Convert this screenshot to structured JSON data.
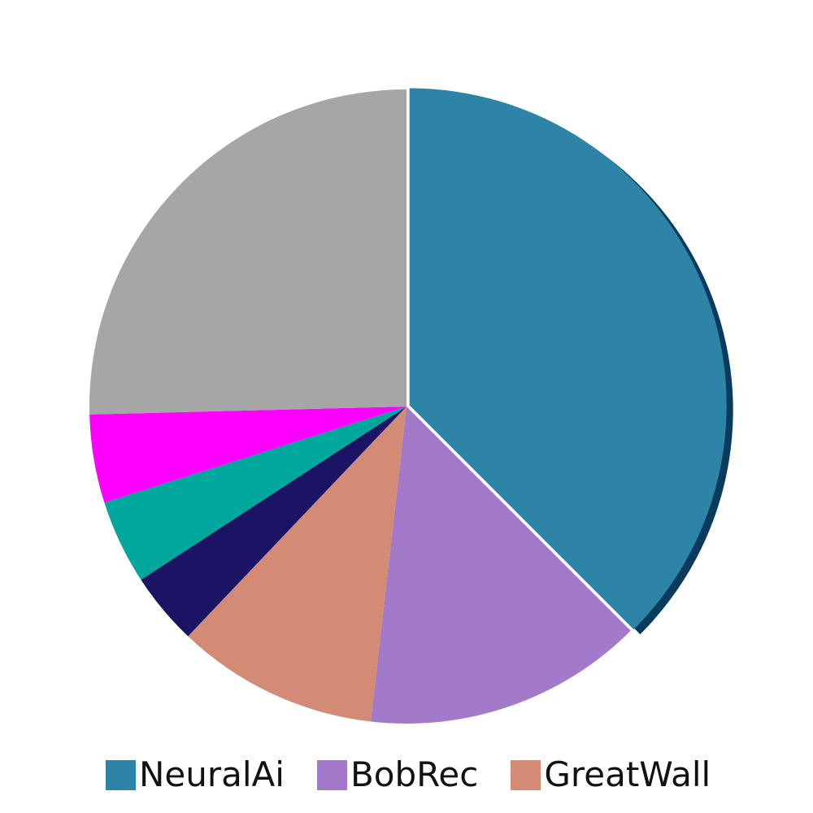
{
  "chart_data": {
    "type": "pie",
    "title": "",
    "start": "12 o'clock",
    "direction": "clockwise",
    "exploded_slice": "NeuralAi",
    "slices": [
      {
        "label": "NeuralAi",
        "value": 37.5,
        "color": "#2e84a6"
      },
      {
        "label": "BobRec",
        "value": 14.3,
        "color": "#a379c9"
      },
      {
        "label": "GreatWall",
        "value": 10.3,
        "color": "#d38b76"
      },
      {
        "label": "",
        "value": 3.7,
        "color": "#1b1464"
      },
      {
        "label": "",
        "value": 4.3,
        "color": "#00a79d"
      },
      {
        "label": "",
        "value": 4.5,
        "color": "#ff00ff"
      },
      {
        "label": "",
        "value": 25.4,
        "color": "#a6a6a6"
      }
    ],
    "legend_position": "bottom",
    "legend": [
      "NeuralAi",
      "BobRec",
      "GreatWall"
    ]
  }
}
